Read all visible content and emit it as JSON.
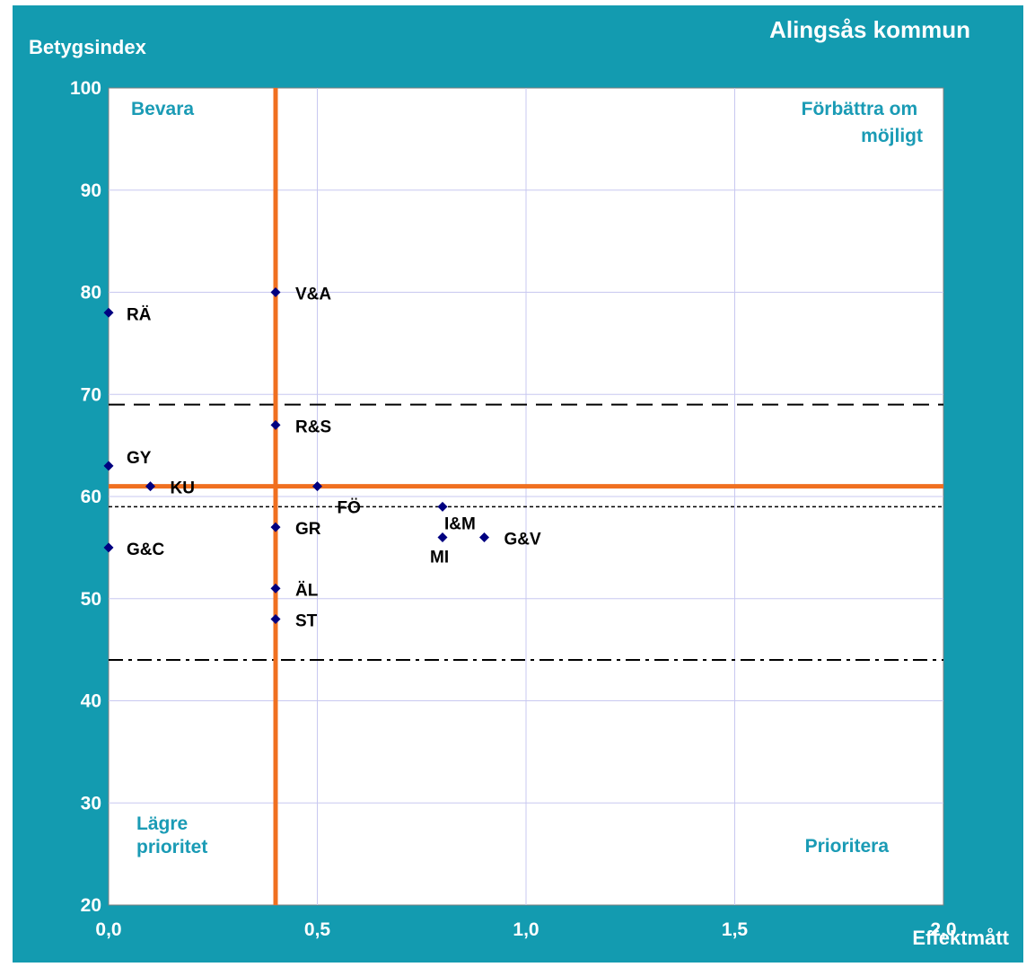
{
  "chart_data": {
    "type": "scatter",
    "title": "Alingsås kommun",
    "xlabel": "Effektmått",
    "ylabel": "Betygsindex",
    "xlim": [
      0.0,
      2.0
    ],
    "ylim": [
      20,
      100
    ],
    "x_ticks": [
      "0,0",
      "0,5",
      "1,0",
      "1,5",
      "2,0"
    ],
    "x_tick_values": [
      0,
      0.5,
      1.0,
      1.5,
      2.0
    ],
    "y_ticks": [
      "20",
      "30",
      "40",
      "50",
      "60",
      "70",
      "80",
      "90",
      "100"
    ],
    "y_tick_values": [
      20,
      30,
      40,
      50,
      60,
      70,
      80,
      90,
      100
    ],
    "grid": true,
    "quadrants": {
      "top_left": "Bevara",
      "top_right": "Förbättra om möjligt",
      "bottom_left": "Lägre prioritet",
      "bottom_right": "Prioritera"
    },
    "reference_lines": {
      "vertical_x": 0.4,
      "horizontal_y": 61,
      "dashed_y": 69,
      "dotted_y": 59,
      "dashdot_y": 44
    },
    "points": [
      {
        "label": "RÄ",
        "x": 0.0,
        "y": 78
      },
      {
        "label": "GY",
        "x": 0.0,
        "y": 63
      },
      {
        "label": "G&C",
        "x": 0.0,
        "y": 55
      },
      {
        "label": "KU",
        "x": 0.1,
        "y": 61
      },
      {
        "label": "V&A",
        "x": 0.4,
        "y": 80
      },
      {
        "label": "R&S",
        "x": 0.4,
        "y": 67
      },
      {
        "label": "GR",
        "x": 0.4,
        "y": 57
      },
      {
        "label": "ÄL",
        "x": 0.4,
        "y": 51
      },
      {
        "label": "ST",
        "x": 0.4,
        "y": 48
      },
      {
        "label": "FÖ",
        "x": 0.5,
        "y": 61
      },
      {
        "label": "I&M",
        "x": 0.8,
        "y": 59
      },
      {
        "label": "MI",
        "x": 0.8,
        "y": 56
      },
      {
        "label": "G&V",
        "x": 0.9,
        "y": 56
      }
    ],
    "colors": {
      "background": "#139BB0",
      "plot_area": "#ffffff",
      "grid": "#C8C8F0",
      "marker": "#000080",
      "reference": "#F07020",
      "quadrant_text": "#1A9BB5",
      "axis_text": "#ffffff",
      "point_text": "#000000"
    }
  }
}
